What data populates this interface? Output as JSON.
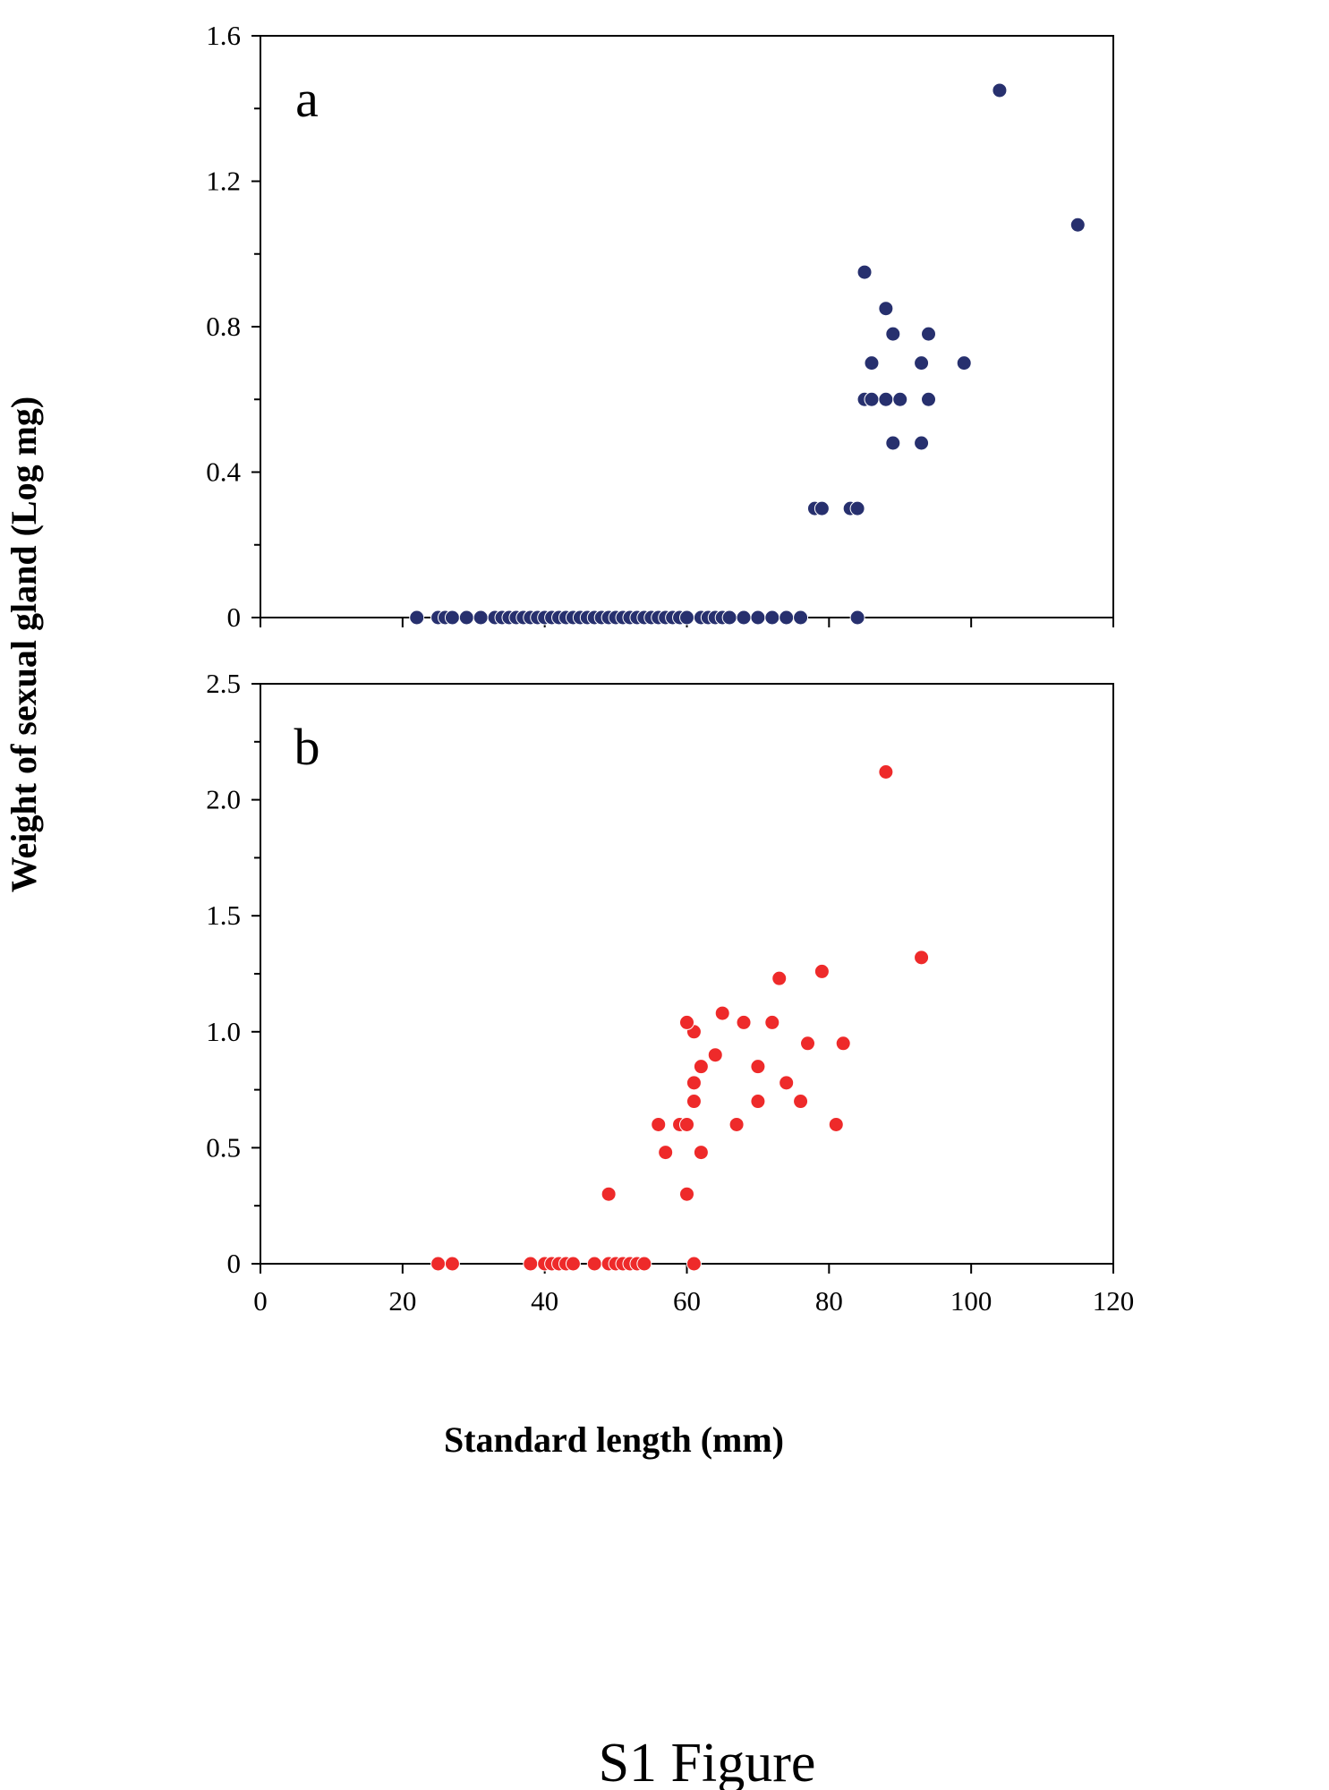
{
  "caption": "S1 Figure",
  "xlabel": "Standard length (mm)",
  "ylabel": "Weight of sexual gland (Log mg)",
  "colors": {
    "a": "#27306e",
    "b": "#ee2a2a"
  },
  "chart_data": [
    {
      "type": "scatter",
      "panel_label": "a",
      "xlim": [
        0,
        120
      ],
      "ylim": [
        0,
        1.6
      ],
      "xticks": [
        0,
        20,
        40,
        60,
        80,
        100,
        120
      ],
      "yticks": [
        "0",
        "0.4",
        "0.8",
        "1.2",
        "1.6"
      ],
      "grid": false,
      "points": [
        [
          22,
          0
        ],
        [
          25,
          0
        ],
        [
          26,
          0
        ],
        [
          27,
          0
        ],
        [
          29,
          0
        ],
        [
          31,
          0
        ],
        [
          33,
          0
        ],
        [
          34,
          0
        ],
        [
          35,
          0
        ],
        [
          36,
          0
        ],
        [
          37,
          0
        ],
        [
          38,
          0
        ],
        [
          39,
          0
        ],
        [
          40,
          0
        ],
        [
          41,
          0
        ],
        [
          42,
          0
        ],
        [
          43,
          0
        ],
        [
          44,
          0
        ],
        [
          45,
          0
        ],
        [
          46,
          0
        ],
        [
          47,
          0
        ],
        [
          48,
          0
        ],
        [
          49,
          0
        ],
        [
          50,
          0
        ],
        [
          51,
          0
        ],
        [
          52,
          0
        ],
        [
          53,
          0
        ],
        [
          54,
          0
        ],
        [
          55,
          0
        ],
        [
          56,
          0
        ],
        [
          57,
          0
        ],
        [
          58,
          0
        ],
        [
          59,
          0
        ],
        [
          60,
          0
        ],
        [
          62,
          0
        ],
        [
          63,
          0
        ],
        [
          64,
          0
        ],
        [
          65,
          0
        ],
        [
          66,
          0
        ],
        [
          68,
          0
        ],
        [
          70,
          0
        ],
        [
          72,
          0
        ],
        [
          74,
          0
        ],
        [
          76,
          0
        ],
        [
          84,
          0
        ],
        [
          78,
          0.3
        ],
        [
          79,
          0.3
        ],
        [
          83,
          0.3
        ],
        [
          84,
          0.3
        ],
        [
          89,
          0.48
        ],
        [
          93,
          0.48
        ],
        [
          85,
          0.6
        ],
        [
          86,
          0.6
        ],
        [
          88,
          0.6
        ],
        [
          90,
          0.6
        ],
        [
          94,
          0.6
        ],
        [
          86,
          0.7
        ],
        [
          93,
          0.7
        ],
        [
          99,
          0.7
        ],
        [
          89,
          0.78
        ],
        [
          94,
          0.78
        ],
        [
          88,
          0.85
        ],
        [
          85,
          0.95
        ],
        [
          115,
          1.08
        ],
        [
          104,
          1.45
        ]
      ]
    },
    {
      "type": "scatter",
      "panel_label": "b",
      "xlim": [
        0,
        120
      ],
      "ylim": [
        0,
        2.5
      ],
      "xticks": [
        0,
        20,
        40,
        60,
        80,
        100,
        120
      ],
      "yticks": [
        "0",
        "0.5",
        "1.0",
        "1.5",
        "2.0",
        "2.5"
      ],
      "grid": false,
      "points": [
        [
          25,
          0
        ],
        [
          27,
          0
        ],
        [
          38,
          0
        ],
        [
          40,
          0
        ],
        [
          41,
          0
        ],
        [
          42,
          0
        ],
        [
          43,
          0
        ],
        [
          44,
          0
        ],
        [
          47,
          0
        ],
        [
          49,
          0
        ],
        [
          50,
          0
        ],
        [
          51,
          0
        ],
        [
          52,
          0
        ],
        [
          53,
          0
        ],
        [
          54,
          0
        ],
        [
          61,
          0
        ],
        [
          49,
          0.3
        ],
        [
          60,
          0.3
        ],
        [
          57,
          0.48
        ],
        [
          62,
          0.48
        ],
        [
          56,
          0.6
        ],
        [
          59,
          0.6
        ],
        [
          60,
          0.6
        ],
        [
          67,
          0.6
        ],
        [
          81,
          0.6
        ],
        [
          61,
          0.7
        ],
        [
          70,
          0.7
        ],
        [
          76,
          0.7
        ],
        [
          61,
          0.78
        ],
        [
          74,
          0.78
        ],
        [
          62,
          0.85
        ],
        [
          70,
          0.85
        ],
        [
          64,
          0.9
        ],
        [
          77,
          0.95
        ],
        [
          82,
          0.95
        ],
        [
          61,
          1.0
        ],
        [
          60,
          1.04
        ],
        [
          68,
          1.04
        ],
        [
          72,
          1.04
        ],
        [
          65,
          1.08
        ],
        [
          73,
          1.23
        ],
        [
          79,
          1.26
        ],
        [
          93,
          1.32
        ],
        [
          88,
          2.12
        ]
      ]
    }
  ]
}
